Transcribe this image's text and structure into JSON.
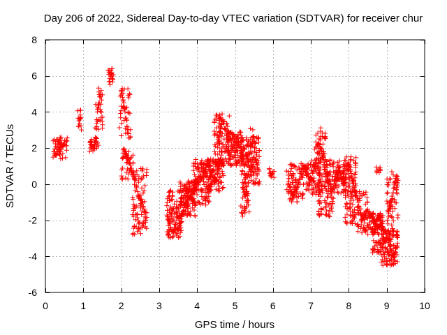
{
  "chart_data": {
    "type": "scatter",
    "title": "Day 206 of 2022, Sidereal Day-to-day VTEC variation (SDTVAR) for receiver chur",
    "xlabel": "GPS time / hours",
    "ylabel": "SDTVAR / TECUs",
    "xlim": [
      0,
      10
    ],
    "ylim": [
      -6,
      8
    ],
    "x_ticks": [
      0,
      1,
      2,
      3,
      4,
      5,
      6,
      7,
      8,
      9,
      10
    ],
    "y_ticks": [
      -6,
      -4,
      -2,
      0,
      2,
      4,
      6,
      8
    ],
    "grid": true,
    "marker": "+",
    "color": "#ff0000",
    "series": [
      {
        "name": "SDTVAR",
        "trace": [
          [
            0.22,
            1.8
          ],
          [
            0.28,
            1.6
          ],
          [
            0.33,
            2.0
          ],
          [
            0.38,
            1.9
          ],
          [
            0.43,
            2.3
          ],
          [
            0.5,
            2.2
          ],
          [
            0.55,
            2.4
          ],
          [
            0.87,
            3.2
          ],
          [
            0.9,
            3.6
          ],
          [
            0.93,
            4.1
          ],
          [
            1.18,
            2.3
          ],
          [
            1.25,
            2.0
          ],
          [
            1.3,
            2.0
          ],
          [
            1.33,
            2.6
          ],
          [
            1.37,
            4.0
          ],
          [
            1.4,
            4.5
          ],
          [
            1.45,
            5.0
          ],
          [
            1.5,
            3.1
          ],
          [
            1.68,
            6.2
          ],
          [
            1.73,
            6.3
          ],
          [
            1.78,
            5.8
          ],
          [
            2.0,
            5.2
          ],
          [
            2.05,
            4.6
          ],
          [
            2.1,
            4.0
          ],
          [
            2.15,
            3.2
          ],
          [
            2.2,
            2.8
          ],
          [
            2.05,
            1.9
          ],
          [
            2.1,
            1.8
          ],
          [
            2.15,
            1.6
          ],
          [
            2.2,
            1.2
          ],
          [
            2.25,
            0.8
          ],
          [
            2.3,
            0.5
          ],
          [
            2.35,
            0.3
          ],
          [
            2.4,
            -0.2
          ],
          [
            2.45,
            -0.6
          ],
          [
            2.5,
            -0.9
          ],
          [
            2.55,
            -1.0
          ],
          [
            2.6,
            -1.5
          ],
          [
            2.65,
            -2.0
          ],
          [
            3.22,
            -1.8
          ],
          [
            3.28,
            -2.2
          ],
          [
            3.35,
            -2.6
          ],
          [
            3.42,
            -2.7
          ],
          [
            3.5,
            -2.5
          ],
          [
            3.55,
            -2.3
          ],
          [
            3.6,
            -1.8
          ],
          [
            3.65,
            -1.3
          ],
          [
            3.7,
            -1.0
          ],
          [
            3.75,
            -0.9
          ],
          [
            3.8,
            -0.7
          ],
          [
            3.85,
            -0.6
          ],
          [
            3.9,
            -0.4
          ],
          [
            3.95,
            -0.2
          ],
          [
            4.0,
            0.0
          ],
          [
            4.05,
            0.3
          ],
          [
            4.1,
            0.5
          ],
          [
            4.15,
            0.4
          ],
          [
            4.2,
            0.8
          ],
          [
            4.25,
            1.0
          ],
          [
            4.3,
            1.0
          ],
          [
            4.35,
            1.0
          ],
          [
            4.4,
            0.5
          ],
          [
            4.45,
            0.2
          ],
          [
            4.5,
            0.2
          ],
          [
            4.55,
            0.8
          ],
          [
            4.6,
            1.1
          ],
          [
            4.65,
            1.8
          ],
          [
            4.55,
            2.5
          ],
          [
            4.6,
            2.9
          ],
          [
            4.65,
            3.3
          ],
          [
            4.7,
            3.5
          ],
          [
            4.75,
            3.0
          ],
          [
            4.8,
            2.6
          ],
          [
            4.85,
            2.8
          ],
          [
            4.9,
            2.4
          ],
          [
            4.95,
            2.0
          ],
          [
            5.0,
            2.3
          ],
          [
            5.05,
            2.6
          ],
          [
            5.1,
            2.2
          ],
          [
            5.15,
            2.0
          ],
          [
            5.2,
            1.6
          ],
          [
            5.25,
            1.0
          ],
          [
            5.3,
            1.6
          ],
          [
            5.35,
            1.4
          ],
          [
            5.4,
            0.8
          ],
          [
            5.45,
            0.9
          ],
          [
            5.5,
            1.5
          ],
          [
            5.55,
            1.2
          ],
          [
            5.6,
            0.9
          ],
          [
            5.2,
            -0.2
          ],
          [
            5.25,
            -0.6
          ],
          [
            5.3,
            -0.4
          ],
          [
            5.35,
            -0.9
          ],
          [
            5.95,
            0.5
          ],
          [
            6.0,
            0.7
          ],
          [
            6.4,
            0.5
          ],
          [
            6.45,
            -0.2
          ],
          [
            6.5,
            -0.4
          ],
          [
            6.55,
            -0.6
          ],
          [
            6.6,
            -0.3
          ],
          [
            6.65,
            0.0
          ],
          [
            6.7,
            0.3
          ],
          [
            6.75,
            0.6
          ],
          [
            6.8,
            0.8
          ],
          [
            6.85,
            1.0
          ],
          [
            6.9,
            0.8
          ],
          [
            6.95,
            0.3
          ],
          [
            7.0,
            0.2
          ],
          [
            7.05,
            0.6
          ],
          [
            7.1,
            1.0
          ],
          [
            7.15,
            1.4
          ],
          [
            7.2,
            2.2
          ],
          [
            7.25,
            2.0
          ],
          [
            7.3,
            1.5
          ],
          [
            7.35,
            1.0
          ],
          [
            7.4,
            0.6
          ],
          [
            7.45,
            0.3
          ],
          [
            7.5,
            0.0
          ],
          [
            7.55,
            -0.4
          ],
          [
            7.6,
            -0.2
          ],
          [
            7.65,
            0.4
          ],
          [
            7.7,
            0.6
          ],
          [
            7.75,
            0.9
          ],
          [
            7.8,
            0.4
          ],
          [
            7.85,
            0.0
          ],
          [
            7.9,
            0.3
          ],
          [
            7.95,
            0.8
          ],
          [
            8.0,
            1.2
          ],
          [
            8.05,
            0.8
          ],
          [
            8.1,
            0.2
          ],
          [
            8.15,
            -0.4
          ],
          [
            8.2,
            -0.6
          ],
          [
            8.25,
            -1.0
          ],
          [
            8.3,
            -1.6
          ],
          [
            8.35,
            -1.9
          ],
          [
            8.4,
            -1.8
          ],
          [
            8.45,
            -1.5
          ],
          [
            8.5,
            -1.4
          ],
          [
            8.55,
            -1.6
          ],
          [
            8.6,
            -1.8
          ],
          [
            8.65,
            -2.0
          ],
          [
            8.7,
            -2.2
          ],
          [
            8.75,
            -2.0
          ],
          [
            8.8,
            -1.7
          ],
          [
            8.85,
            -2.0
          ],
          [
            8.9,
            -2.4
          ],
          [
            8.95,
            -2.6
          ],
          [
            9.0,
            -2.8
          ],
          [
            9.05,
            -3.0
          ],
          [
            9.1,
            -3.6
          ],
          [
            9.15,
            -3.9
          ],
          [
            9.2,
            -4.0
          ],
          [
            9.25,
            -3.5
          ],
          [
            9.05,
            -1.6
          ],
          [
            9.1,
            -1.2
          ],
          [
            9.15,
            -0.8
          ],
          [
            9.2,
            -0.2
          ],
          [
            9.25,
            0.4
          ],
          [
            9.3,
            0.2
          ]
        ],
        "clouds": [
          {
            "x": [
              0.2,
              0.58
            ],
            "y": [
              1.4,
              2.6
            ],
            "n": 42
          },
          {
            "x": [
              0.85,
              0.95
            ],
            "y": [
              3.0,
              4.2
            ],
            "n": 8
          },
          {
            "x": [
              1.15,
              1.4
            ],
            "y": [
              1.8,
              2.6
            ],
            "n": 22
          },
          {
            "x": [
              1.3,
              1.52
            ],
            "y": [
              3.0,
              5.4
            ],
            "n": 22
          },
          {
            "x": [
              1.65,
              1.8
            ],
            "y": [
              5.5,
              6.4
            ],
            "n": 16
          },
          {
            "x": [
              1.95,
              2.25
            ],
            "y": [
              2.5,
              5.3
            ],
            "n": 35
          },
          {
            "x": [
              2.0,
              2.35
            ],
            "y": [
              0.2,
              2.0
            ],
            "n": 35
          },
          {
            "x": [
              2.3,
              2.68
            ],
            "y": [
              -2.8,
              1.0
            ],
            "n": 80
          },
          {
            "x": [
              3.2,
              3.6
            ],
            "y": [
              -3.0,
              -0.3
            ],
            "n": 110
          },
          {
            "x": [
              3.55,
              3.95
            ],
            "y": [
              -1.8,
              0.2
            ],
            "n": 110
          },
          {
            "x": [
              3.9,
              4.35
            ],
            "y": [
              -1.2,
              1.4
            ],
            "n": 120
          },
          {
            "x": [
              4.25,
              4.7
            ],
            "y": [
              -0.4,
              1.4
            ],
            "n": 90
          },
          {
            "x": [
              4.45,
              4.85
            ],
            "y": [
              1.0,
              3.9
            ],
            "n": 90
          },
          {
            "x": [
              4.8,
              5.2
            ],
            "y": [
              1.0,
              2.9
            ],
            "n": 90
          },
          {
            "x": [
              5.15,
              5.65
            ],
            "y": [
              0.0,
              2.6
            ],
            "n": 120
          },
          {
            "x": [
              5.15,
              5.4
            ],
            "y": [
              -1.8,
              0.2
            ],
            "n": 30
          },
          {
            "x": [
              5.4,
              5.55
            ],
            "y": [
              2.0,
              3.2
            ],
            "n": 12
          },
          {
            "x": [
              5.9,
              6.05
            ],
            "y": [
              0.3,
              0.9
            ],
            "n": 8
          },
          {
            "x": [
              6.35,
              6.8
            ],
            "y": [
              -1.0,
              1.2
            ],
            "n": 70
          },
          {
            "x": [
              6.8,
              7.25
            ],
            "y": [
              -0.6,
              1.3
            ],
            "n": 80
          },
          {
            "x": [
              7.1,
              7.4
            ],
            "y": [
              0.8,
              3.2
            ],
            "n": 50
          },
          {
            "x": [
              7.2,
              7.6
            ],
            "y": [
              -1.8,
              0.8
            ],
            "n": 80
          },
          {
            "x": [
              7.4,
              7.9
            ],
            "y": [
              -0.6,
              1.4
            ],
            "n": 80
          },
          {
            "x": [
              7.85,
              8.2
            ],
            "y": [
              -0.6,
              1.6
            ],
            "n": 60
          },
          {
            "x": [
              7.9,
              8.2
            ],
            "y": [
              -2.2,
              -0.2
            ],
            "n": 50
          },
          {
            "x": [
              8.2,
              8.5
            ],
            "y": [
              -2.7,
              -0.4
            ],
            "n": 50
          },
          {
            "x": [
              8.5,
              8.9
            ],
            "y": [
              -2.8,
              -1.5
            ],
            "n": 70
          },
          {
            "x": [
              8.6,
              8.85
            ],
            "y": [
              -3.8,
              -2.3
            ],
            "n": 40
          },
          {
            "x": [
              8.7,
              8.85
            ],
            "y": [
              0.6,
              0.95
            ],
            "n": 10
          },
          {
            "x": [
              8.85,
              9.3
            ],
            "y": [
              -4.5,
              -2.5
            ],
            "n": 110
          },
          {
            "x": [
              9.0,
              9.3
            ],
            "y": [
              -2.6,
              0.7
            ],
            "n": 50
          }
        ]
      }
    ]
  }
}
